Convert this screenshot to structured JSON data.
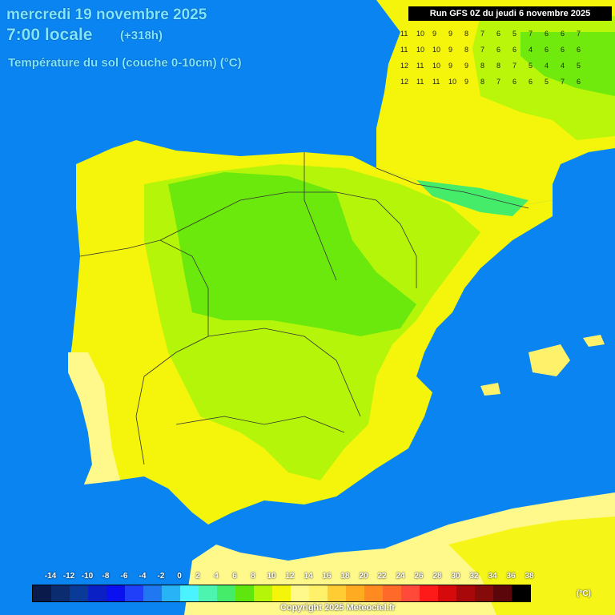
{
  "header": {
    "date": "mercredi 19 novembre 2025",
    "hour": "7:00 locale",
    "offset": "(+318h)",
    "parameter": "Température du sol (couche 0-10cm) (°C)",
    "run": "Run GFS 0Z du jeudi 6 novembre 2025"
  },
  "footer": {
    "copyright": "Copyright 2025 Meteociel.fr"
  },
  "legend": {
    "unit": "(°C)",
    "labels": [
      "-14",
      "-12",
      "-10",
      "-8",
      "-6",
      "-4",
      "-2",
      "0",
      "2",
      "4",
      "6",
      "8",
      "10",
      "12",
      "14",
      "16",
      "18",
      "20",
      "22",
      "24",
      "26",
      "28",
      "30",
      "32",
      "34",
      "36",
      "38"
    ],
    "colors": [
      "#0a1a4a",
      "#0b2c6e",
      "#0a3a98",
      "#0a1fc4",
      "#0a10ee",
      "#1f40f8",
      "#1f78f0",
      "#27b3f5",
      "#4af3ff",
      "#4cf4b0",
      "#45ec6a",
      "#5ee60e",
      "#b5f50a",
      "#f4f50a",
      "#fff88a",
      "#fff26a",
      "#ffcc33",
      "#ffab22",
      "#ff8a1f",
      "#ff6a2a",
      "#ff4a3a",
      "#ff1a1a",
      "#d60a0a",
      "#a8080a",
      "#850a0a",
      "#5a060a",
      "#000000"
    ]
  },
  "map": {
    "sea_color": "#0a84f0",
    "land_color": "#f4f50a",
    "grid_values_sample": [
      [
        "11",
        "10",
        "9",
        "9",
        "8",
        "7",
        "6",
        "5",
        "7",
        "6",
        "6",
        "7"
      ],
      [
        "11",
        "10",
        "10",
        "9",
        "8",
        "7",
        "6",
        "6",
        "4",
        "6",
        "6",
        "6"
      ],
      [
        "12",
        "11",
        "10",
        "9",
        "9",
        "8",
        "8",
        "7",
        "5",
        "4",
        "4",
        "5"
      ],
      [
        "12",
        "11",
        "11",
        "10",
        "9",
        "8",
        "7",
        "6",
        "6",
        "5",
        "7",
        "6"
      ]
    ]
  }
}
